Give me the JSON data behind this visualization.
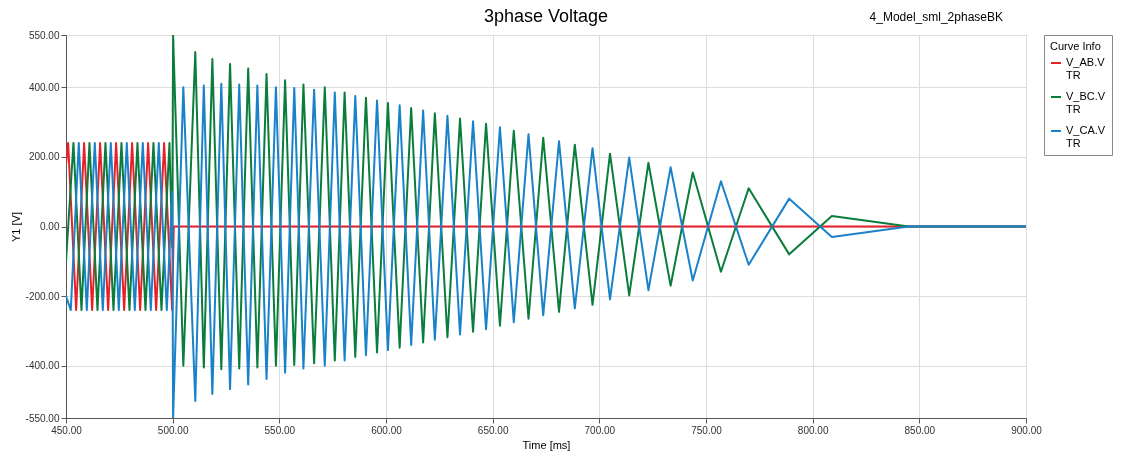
{
  "chart_data": {
    "type": "line",
    "title": "3phase Voltage",
    "xlabel": "Time [ms]",
    "ylabel": "Y1 [V]",
    "legend_title": "Curve Info",
    "annotations": [
      "4_Model_sml_2phaseBK"
    ],
    "xlim": [
      450,
      900
    ],
    "xticks": [
      {
        "value": 450,
        "label": "450.00"
      },
      {
        "value": 500,
        "label": "500.00"
      },
      {
        "value": 550,
        "label": "550.00"
      },
      {
        "value": 600,
        "label": "600.00"
      },
      {
        "value": 650,
        "label": "650.00"
      },
      {
        "value": 700,
        "label": "700.00"
      },
      {
        "value": 750,
        "label": "750.00"
      },
      {
        "value": 800,
        "label": "800.00"
      },
      {
        "value": 850,
        "label": "850.00"
      },
      {
        "value": 900,
        "label": "900.00"
      }
    ],
    "ylim": [
      -550,
      550
    ],
    "yticks": [
      {
        "value": -550,
        "label": "-550.00"
      },
      {
        "value": -400,
        "label": "-400.00"
      },
      {
        "value": -200,
        "label": "-200.00"
      },
      {
        "value": 0,
        "label": "0.00"
      },
      {
        "value": 200,
        "label": "200.00"
      },
      {
        "value": 400,
        "label": "400.00"
      },
      {
        "value": 550,
        "label": "550.00"
      }
    ],
    "grid": true,
    "legend": "right",
    "line_style": "solid",
    "marker": "none",
    "series": [
      {
        "name": "V_AB.V TR",
        "color": "#e8202a",
        "x": [
          450,
          451,
          454.75,
          458.5,
          462.25,
          466,
          469.75,
          473.5,
          477.25,
          481,
          484.75,
          488.5,
          492.25,
          496,
          499.75,
          500.5,
          900
        ],
        "values": [
          180,
          240,
          -240,
          240,
          -240,
          240,
          -240,
          240,
          -240,
          240,
          -240,
          240,
          -240,
          240,
          -240,
          0,
          0
        ]
      },
      {
        "name": "V_BC.V TR",
        "color": "#0a7d3c",
        "x": [
          450,
          453.5,
          457.25,
          461,
          464.75,
          468.5,
          472.25,
          476,
          479.75,
          483.5,
          487.25,
          491,
          494.75,
          498.5,
          499.8,
          500.2,
          505,
          510.6,
          514.6,
          518.6,
          522.8,
          526.9,
          531.2,
          535.4,
          539.7,
          544,
          548.4,
          552.7,
          557,
          561.3,
          566.3,
          571.3,
          576,
          580.6,
          585.6,
          590.6,
          595.8,
          600.9,
          606.4,
          611.8,
          617.4,
          622.9,
          628.8,
          634.7,
          640.8,
          646.9,
          653.4,
          659.9,
          666.8,
          673.7,
          681.1,
          688.5,
          696.8,
          705,
          714,
          723,
          733.4,
          743.8,
          757,
          770,
          789,
          809,
          845,
          900
        ],
        "values": [
          -100,
          240,
          -240,
          240,
          -240,
          240,
          -240,
          240,
          -240,
          240,
          -240,
          240,
          -240,
          240,
          -60,
          550,
          -400,
          501,
          -405,
          481,
          -410,
          467,
          -408,
          454,
          -405,
          438,
          -400,
          420,
          -398,
          408,
          -393,
          400,
          -385,
          385,
          -375,
          370,
          -362,
          355,
          -348,
          340,
          -333,
          325,
          -318,
          310,
          -302,
          295,
          -285,
          275,
          -265,
          255,
          -245,
          235,
          -225,
          209,
          -198,
          183,
          -170,
          155,
          -130,
          110,
          -80,
          30,
          0,
          0
        ]
      },
      {
        "name": "V_CA.V TR",
        "color": "#1a82c8",
        "x": [
          450,
          452.25,
          456,
          459.75,
          463.5,
          467.25,
          471,
          474.75,
          478.5,
          482.25,
          486,
          489.75,
          493.5,
          497.25,
          499.8,
          500.2,
          505,
          510.6,
          514.6,
          518.6,
          522.8,
          526.9,
          531.2,
          535.4,
          539.7,
          544,
          548.4,
          552.7,
          557,
          561.3,
          566.3,
          571.3,
          576,
          580.6,
          585.6,
          590.6,
          595.8,
          600.9,
          606.4,
          611.8,
          617.4,
          622.9,
          628.8,
          634.7,
          640.8,
          646.9,
          653.4,
          659.9,
          666.8,
          673.7,
          681.1,
          688.5,
          696.8,
          705,
          714,
          723,
          733.4,
          743.8,
          757,
          770,
          789,
          809,
          845,
          900
        ],
        "values": [
          -200,
          -240,
          240,
          -240,
          240,
          -240,
          240,
          -240,
          240,
          -240,
          240,
          -240,
          240,
          -240,
          100,
          -550,
          400,
          -501,
          405,
          -481,
          410,
          -467,
          408,
          -454,
          405,
          -438,
          400,
          -420,
          398,
          -408,
          393,
          -400,
          385,
          -385,
          375,
          -370,
          362,
          -355,
          348,
          -340,
          333,
          -325,
          318,
          -310,
          302,
          -295,
          285,
          -275,
          265,
          -255,
          245,
          -235,
          225,
          -209,
          198,
          -183,
          170,
          -155,
          130,
          -110,
          80,
          -30,
          0,
          0
        ]
      }
    ]
  }
}
